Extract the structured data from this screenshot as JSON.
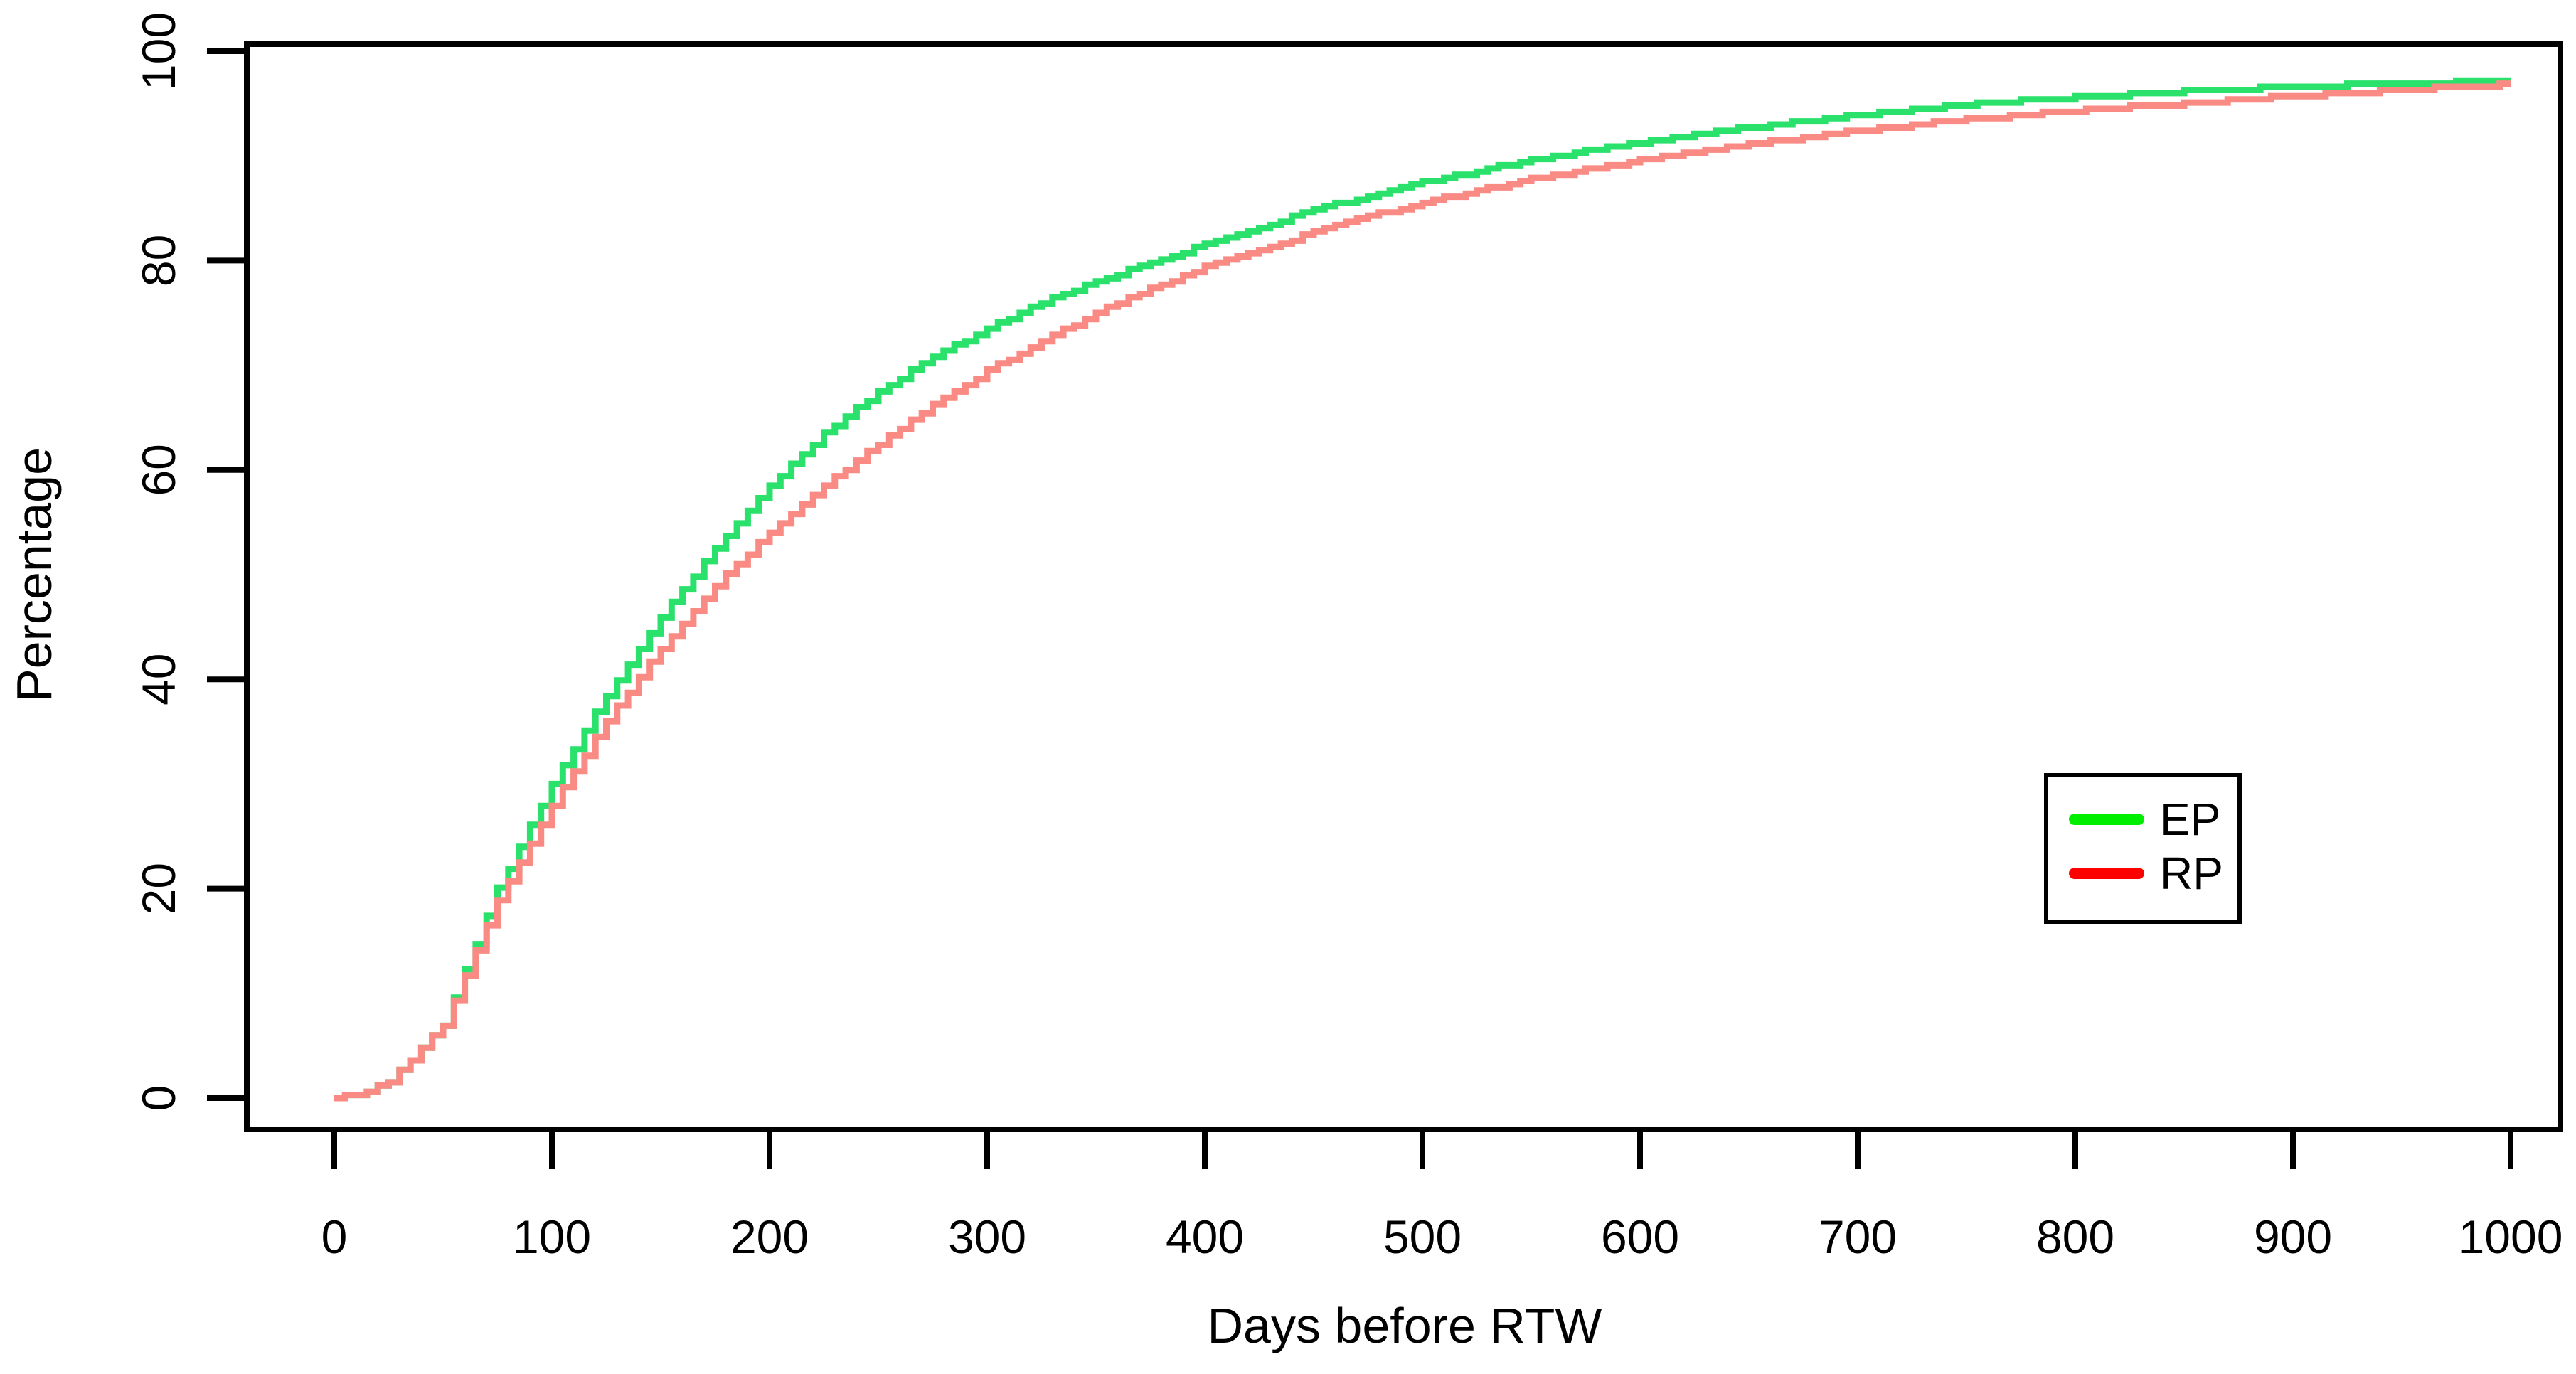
{
  "figure": {
    "background": "#ffffff",
    "frame_color": "#000000"
  },
  "chart_data": {
    "type": "line",
    "title": "",
    "xlabel": "Days before RTW",
    "ylabel": "Percentage",
    "xlim": [
      0,
      1000
    ],
    "ylim": [
      0,
      100
    ],
    "x_ticks": [
      0,
      100,
      200,
      300,
      400,
      500,
      600,
      700,
      800,
      900,
      1000
    ],
    "y_ticks": [
      0,
      20,
      40,
      60,
      80,
      100
    ],
    "grid": false,
    "legend": {
      "position": "right-middle",
      "border_color": "#000000",
      "entries": [
        {
          "label": "EP",
          "color": "#00ee00"
        },
        {
          "label": "RP",
          "color": "#ff0000"
        }
      ]
    },
    "series": [
      {
        "name": "EP",
        "color": "#29e16b",
        "x": [
          0,
          10,
          25,
          50,
          75,
          100,
          125,
          150,
          175,
          200,
          225,
          250,
          275,
          300,
          325,
          350,
          375,
          400,
          425,
          450,
          475,
          500,
          550,
          600,
          650,
          700,
          750,
          800,
          850,
          900,
          950,
          1000
        ],
        "y": [
          0,
          0.3,
          1.5,
          7,
          20,
          30,
          38.5,
          46,
          52.5,
          58.5,
          63.5,
          67.5,
          70.8,
          73.5,
          76,
          78,
          79.8,
          81.5,
          83.2,
          84.8,
          86.2,
          87.5,
          89.6,
          91.3,
          92.7,
          93.9,
          94.9,
          95.6,
          96.2,
          96.6,
          96.9,
          97.2
        ]
      },
      {
        "name": "RP",
        "color": "#f98b84",
        "x": [
          0,
          10,
          25,
          50,
          75,
          100,
          125,
          150,
          175,
          200,
          225,
          250,
          275,
          300,
          325,
          350,
          375,
          400,
          425,
          450,
          475,
          500,
          550,
          600,
          650,
          700,
          750,
          800,
          850,
          900,
          950,
          1000
        ],
        "y": [
          0,
          0.3,
          1.5,
          7,
          19,
          28,
          36,
          43,
          49,
          54,
          58.5,
          62.5,
          66.2,
          69.5,
          72.3,
          75,
          77.3,
          79.4,
          81,
          82.7,
          84.2,
          85.5,
          87.8,
          89.6,
          91.1,
          92.4,
          93.5,
          94.3,
          95,
          95.7,
          96.3,
          96.8
        ]
      }
    ]
  }
}
